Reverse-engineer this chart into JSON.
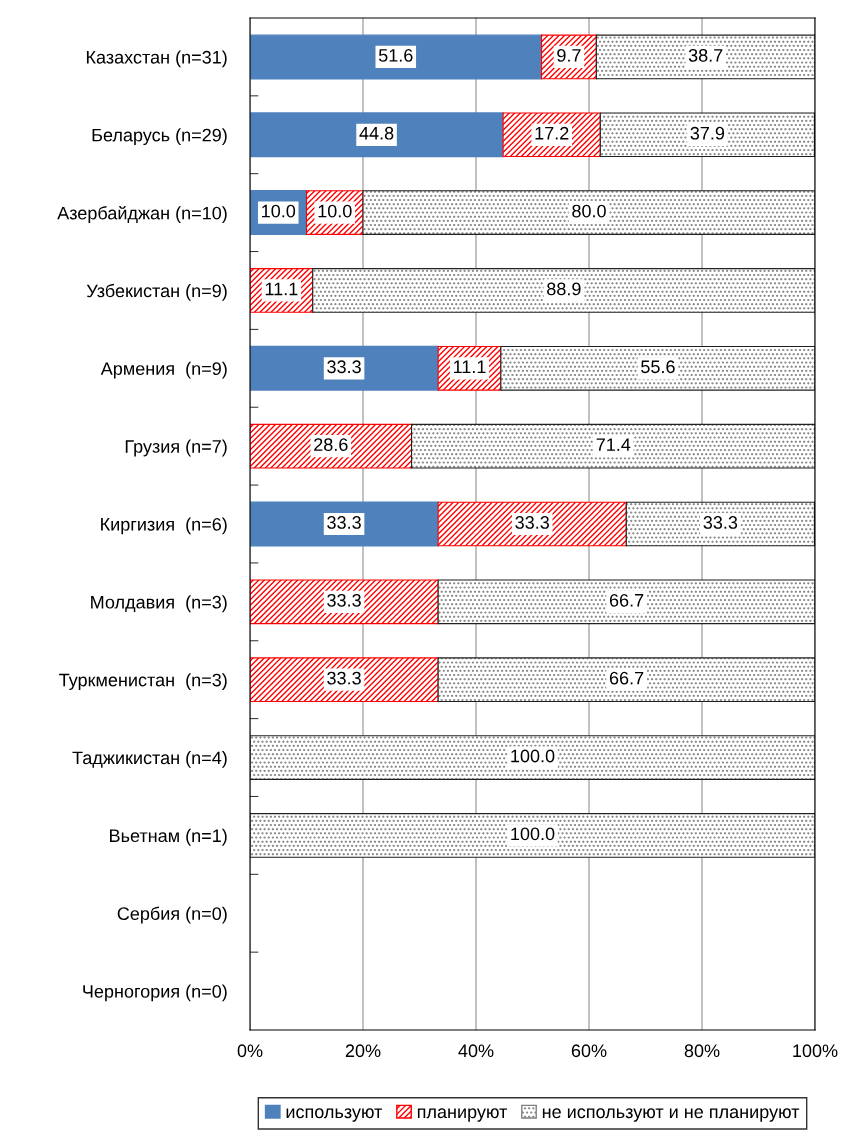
{
  "chart_data": {
    "type": "bar",
    "orientation": "horizontal",
    "stacked": true,
    "categories": [
      "Казахстан (n=31)",
      "Беларусь (n=29)",
      "Азербайджан (n=10)",
      "Узбекистан (n=9)",
      "Армения  (n=9)",
      "Грузия (n=7)",
      "Киргизия  (n=6)",
      "Молдавия  (n=3)",
      "Туркменистан  (n=3)",
      "Таджикистан (n=4)",
      "Вьетнам (n=1)",
      "Сербия (n=0)",
      "Черногория (n=0)"
    ],
    "series": [
      {
        "name": "используют",
        "color": "#4f81bd",
        "values": [
          51.6,
          44.8,
          10.0,
          null,
          33.3,
          null,
          33.3,
          null,
          null,
          null,
          null,
          null,
          null
        ],
        "value_labels": [
          "51.6",
          "44.8",
          "10.0",
          null,
          "33.3",
          null,
          "33.3",
          null,
          null,
          null,
          null,
          null,
          null
        ]
      },
      {
        "name": "планируют",
        "color": "#ff0000",
        "values": [
          9.7,
          17.2,
          10.0,
          11.1,
          11.1,
          28.6,
          33.3,
          33.3,
          33.3,
          null,
          null,
          null,
          null
        ],
        "value_labels": [
          "9.7",
          "17.2",
          "10.0",
          "11.1",
          "11.1",
          "28.6",
          "33.3",
          "33.3",
          "33.3",
          null,
          null,
          null,
          null
        ]
      },
      {
        "name": "не используют и не планируют",
        "color": "#808080",
        "values": [
          38.7,
          37.9,
          80.0,
          88.9,
          55.6,
          71.4,
          33.3,
          66.7,
          66.7,
          100.0,
          100.0,
          null,
          null
        ],
        "value_labels": [
          "38.7",
          "37.9",
          "80.0",
          "88.9",
          "55.6",
          "71.4",
          "33.3",
          "66.7",
          "66.7",
          "100.0",
          "100.0",
          null,
          null
        ]
      }
    ],
    "xlim": [
      0,
      100
    ],
    "xticks": [
      {
        "value": 0,
        "label": "0%"
      },
      {
        "value": 20,
        "label": "20%"
      },
      {
        "value": 40,
        "label": "40%"
      },
      {
        "value": 60,
        "label": "60%"
      },
      {
        "value": 80,
        "label": "80%"
      },
      {
        "value": 100,
        "label": "100%"
      }
    ],
    "grid": "x",
    "legend": "bottom"
  }
}
